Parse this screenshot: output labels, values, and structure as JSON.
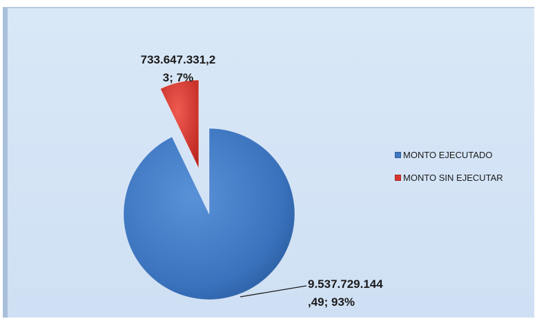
{
  "colors": {
    "series_0": "#3f78c3",
    "series_1": "#d9362f"
  },
  "chart_data": {
    "type": "pie",
    "categories": [
      "MONTO EJECUTADO",
      "MONTO SIN EJECUTAR"
    ],
    "values": [
      9537729144.49,
      733647331.23
    ],
    "percentages": [
      93,
      7
    ],
    "data_labels": [
      [
        "9.537.729.144",
        ",49; 93%"
      ],
      [
        "733.647.331,2",
        "3; 7%"
      ]
    ],
    "legend_position": "right",
    "exploded_slice": "MONTO SIN EJECUTAR"
  }
}
